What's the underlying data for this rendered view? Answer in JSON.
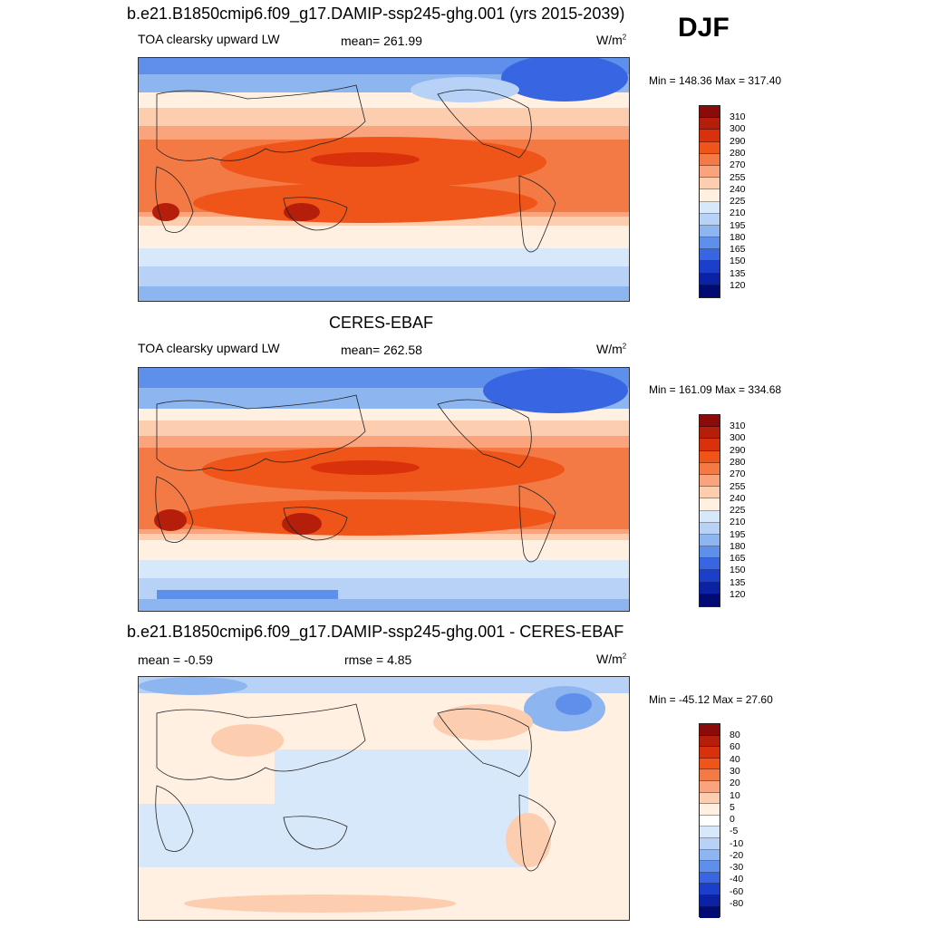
{
  "header": {
    "season": "DJF"
  },
  "panels": [
    {
      "title": "b.e21.B1850cmip6.f09_g17.DAMIP-ssp245-ghg.001 (yrs 2015-2039)",
      "left_label": "TOA clearsky upward LW",
      "center_label": "mean= 261.99",
      "units": "W/m",
      "units_sup": "2",
      "minmax": "Min = 148.36 Max = 317.40",
      "colorbar_ticks": [
        "310",
        "300",
        "290",
        "280",
        "270",
        "255",
        "240",
        "225",
        "210",
        "195",
        "180",
        "165",
        "150",
        "135",
        "120"
      ]
    },
    {
      "title": "CERES-EBAF",
      "left_label": "TOA clearsky upward LW",
      "center_label": "mean= 262.58",
      "units": "W/m",
      "units_sup": "2",
      "minmax": "Min = 161.09 Max = 334.68",
      "colorbar_ticks": [
        "310",
        "300",
        "290",
        "280",
        "270",
        "255",
        "240",
        "225",
        "210",
        "195",
        "180",
        "165",
        "150",
        "135",
        "120"
      ]
    },
    {
      "title": "b.e21.B1850cmip6.f09_g17.DAMIP-ssp245-ghg.001 - CERES-EBAF",
      "left_label": "mean =  -0.59",
      "center_label": "rmse =   4.85",
      "units": "W/m",
      "units_sup": "2",
      "minmax": "Min = -45.12 Max =  27.60",
      "colorbar_ticks": [
        "80",
        "60",
        "40",
        "30",
        "20",
        "10",
        "5",
        "0",
        "-5",
        "-10",
        "-20",
        "-30",
        "-40",
        "-60",
        "-80"
      ]
    }
  ],
  "colors": {
    "abs_scale": [
      "#8b0a0a",
      "#b51e0a",
      "#d9310c",
      "#ef5418",
      "#f47a45",
      "#f9a47c",
      "#fdcdb0",
      "#fff0e2",
      "#d7e8fb",
      "#b7d2f6",
      "#8db5f0",
      "#5e8fea",
      "#3866e2",
      "#1b3fcb",
      "#0b22a5",
      "#020b74"
    ],
    "diff_scale": [
      "#8b0a0a",
      "#b51e0a",
      "#d9310c",
      "#ef5418",
      "#f47a45",
      "#f9a47c",
      "#fdcdb0",
      "#fff0e2",
      "#ffffff",
      "#d7e8fb",
      "#b7d2f6",
      "#8db5f0",
      "#5e8fea",
      "#3866e2",
      "#1b3fcb",
      "#0b22a5",
      "#020b74"
    ]
  }
}
